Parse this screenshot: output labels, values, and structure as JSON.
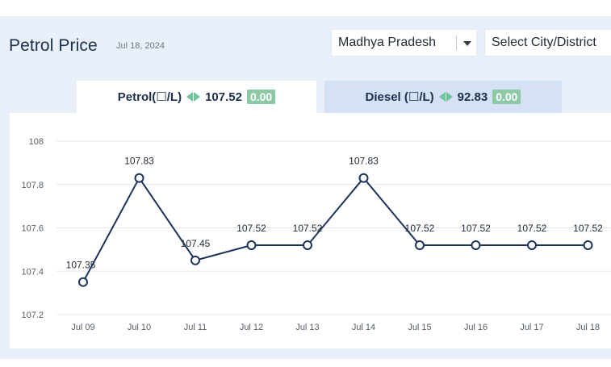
{
  "header": {
    "title": "Petrol Price",
    "date": "Jul 18, 2024"
  },
  "filters": {
    "state": "Madhya Pradesh",
    "city": "Select City/District"
  },
  "tabs": {
    "petrol": {
      "label": "Petrol(☐/L)",
      "price": "107.52",
      "change": "0.00"
    },
    "diesel": {
      "label": "Diesel (☐/L)",
      "price": "92.83",
      "change": "0.00"
    }
  },
  "colors": {
    "line": "#1b3358",
    "marker_fill": "#ffffff",
    "grid": "#e4e8ee",
    "change_badge": "#8ccaa6",
    "change_arrows": "#6ec49a"
  },
  "chart_data": {
    "type": "line",
    "title": "",
    "xlabel": "",
    "ylabel": "",
    "categories": [
      "Jul 09",
      "Jul 10",
      "Jul 11",
      "Jul 12",
      "Jul 13",
      "Jul 14",
      "Jul 15",
      "Jul 16",
      "Jul 17",
      "Jul 18"
    ],
    "values": [
      107.35,
      107.83,
      107.45,
      107.52,
      107.52,
      107.83,
      107.52,
      107.52,
      107.52,
      107.52
    ],
    "data_labels": [
      "107.35",
      "107.83",
      "107.45",
      "107.52",
      "107.52",
      "107.83",
      "107.52",
      "107.52",
      "107.52",
      "107.52"
    ],
    "ylim": [
      107.2,
      108
    ],
    "yticks": [
      "107.2",
      "107.4",
      "107.6",
      "107.8",
      "108"
    ],
    "grid": true,
    "legend": "none"
  }
}
